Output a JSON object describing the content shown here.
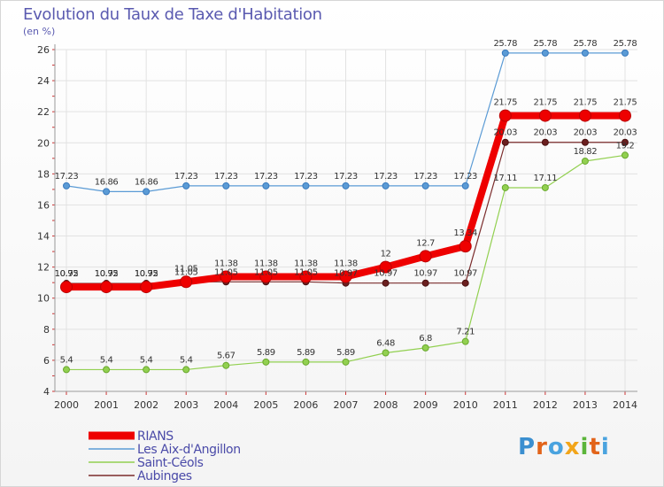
{
  "chart_data": {
    "type": "line",
    "title": "Evolution du Taux de Taxe d'Habitation",
    "subtitle": "(en %)",
    "xlabel": "",
    "ylabel": "",
    "x": [
      "2000",
      "2001",
      "2002",
      "2003",
      "2004",
      "2005",
      "2006",
      "2007",
      "2008",
      "2009",
      "2010",
      "2011",
      "2012",
      "2013",
      "2014"
    ],
    "ylim": [
      4,
      26
    ],
    "yticks": [
      4,
      6,
      8,
      10,
      12,
      14,
      16,
      18,
      20,
      22,
      24,
      26
    ],
    "grid": true,
    "legend_position": "bottom-left",
    "series": [
      {
        "name": "Les Aix-d'Angillon",
        "color": "#5b9bd5",
        "values": [
          17.23,
          16.86,
          16.86,
          17.23,
          17.23,
          17.23,
          17.23,
          17.23,
          17.23,
          17.23,
          17.23,
          25.78,
          25.78,
          25.78,
          25.78
        ],
        "labels": [
          "17.23",
          "16.86",
          "16.86",
          "17.23",
          "17.23",
          "17.23",
          "17.23",
          "17.23",
          "17.23",
          "17.23",
          "17.23",
          "25.78",
          "25.78",
          "25.78",
          "25.78"
        ]
      },
      {
        "name": "Saint-Céols",
        "color": "#92d050",
        "values": [
          5.4,
          5.4,
          5.4,
          5.4,
          5.67,
          5.89,
          5.89,
          5.89,
          6.48,
          6.8,
          7.21,
          17.11,
          17.11,
          18.82,
          19.2
        ],
        "labels": [
          "5.4",
          "5.4",
          "5.4",
          "5.4",
          "5.67",
          "5.89",
          "5.89",
          "5.89",
          "6.48",
          "6.8",
          "7.21",
          "17.11",
          "17.11",
          "18.82",
          "19.2"
        ]
      },
      {
        "name": "Aubinges",
        "color": "#7b2c2c",
        "values": [
          10.95,
          10.95,
          10.95,
          11.05,
          11.05,
          11.05,
          11.05,
          10.97,
          10.97,
          10.97,
          10.97,
          20.03,
          20.03,
          20.03,
          20.03
        ],
        "labels": [
          "10.95",
          "10.95",
          "10.95",
          "11.05",
          "11.05",
          "11.05",
          "11.05",
          "10.97",
          "10.97",
          "10.97",
          "10.97",
          "20.03",
          "20.03",
          "20.03",
          "20.03"
        ]
      },
      {
        "name": "RIANS",
        "color": "#ee0000",
        "values": [
          10.72,
          10.72,
          10.72,
          11.05,
          11.38,
          11.38,
          11.38,
          11.38,
          12,
          12.7,
          13.34,
          21.75,
          21.75,
          21.75,
          21.75
        ],
        "labels": [
          "10.72",
          "10.72",
          "10.72",
          "11.05",
          "11.38",
          "11.38",
          "11.38",
          "11.38",
          "12",
          "12.7",
          "13.34",
          "21.75",
          "21.75",
          "21.75",
          "21.75"
        ]
      }
    ],
    "legend": [
      "RIANS",
      "Les Aix-d'Angillon",
      "Saint-Céols",
      "Aubinges"
    ]
  },
  "brand": {
    "text": "Proxiti",
    "letter_colors": [
      "#3b8fd0",
      "#e2641a",
      "#4aa3df",
      "#f2a51a",
      "#5bb53a",
      "#e2641a",
      "#4aa3df"
    ]
  }
}
